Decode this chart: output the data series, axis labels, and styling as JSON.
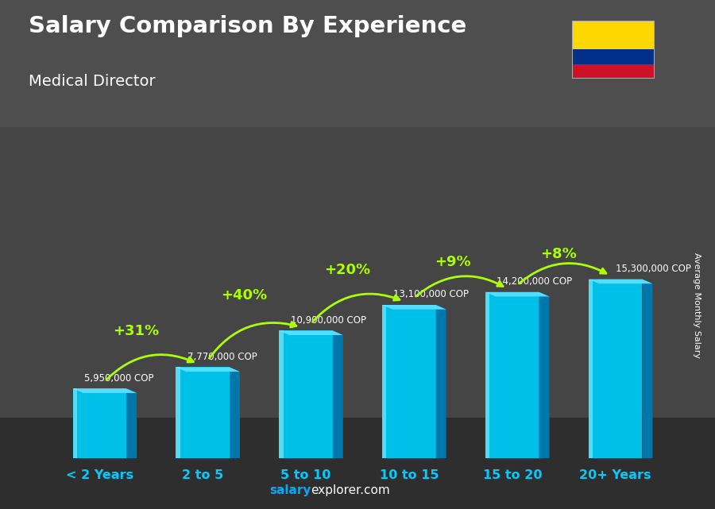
{
  "title": "Salary Comparison By Experience",
  "subtitle": "Medical Director",
  "categories": [
    "< 2 Years",
    "2 to 5",
    "5 to 10",
    "10 to 15",
    "15 to 20",
    "20+ Years"
  ],
  "values": [
    5950000,
    7770000,
    10900000,
    13100000,
    14200000,
    15300000
  ],
  "value_labels": [
    "5,950,000 COP",
    "7,770,000 COP",
    "10,900,000 COP",
    "13,100,000 COP",
    "14,200,000 COP",
    "15,300,000 COP"
  ],
  "pct_changes": [
    "+31%",
    "+40%",
    "+20%",
    "+9%",
    "+8%"
  ],
  "bar_front_color": "#00c0e8",
  "bar_side_color": "#0077aa",
  "bar_top_color": "#55ddff",
  "bg_color": "#5a5a5a",
  "title_color": "#ffffff",
  "subtitle_color": "#ffffff",
  "pct_color": "#aaff00",
  "value_label_color": "#ffffff",
  "xlabel_color": "#00ccff",
  "footer_text_salary": "salary",
  "footer_text_rest": "explorer.com",
  "ylabel_text": "Average Monthly Salary",
  "ylabel_color": "#ffffff",
  "footer_salary_color": "#00aaff",
  "footer_explorer_color": "#ffffff",
  "flag_yellow": "#FFD700",
  "flag_blue": "#003087",
  "flag_red": "#CE1126"
}
